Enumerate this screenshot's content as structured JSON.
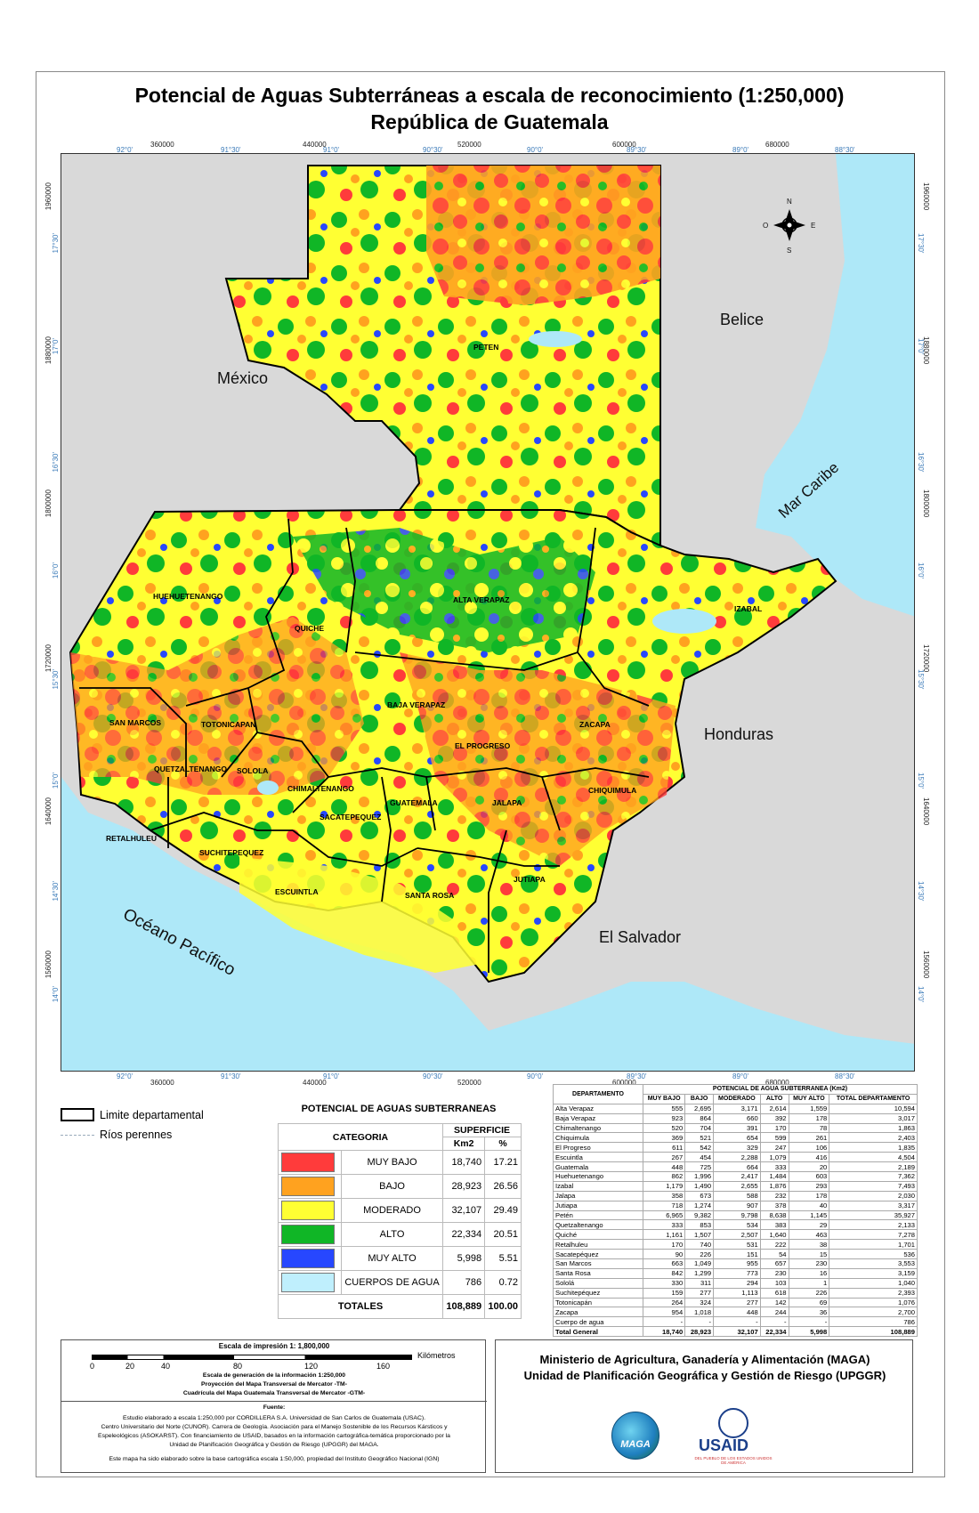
{
  "title": {
    "line1": "Potencial de Aguas Subterráneas a escala de reconocimiento (1:250,000)",
    "line2": "República de Guatemala"
  },
  "map": {
    "countries": {
      "mexico": "México",
      "belice": "Belice",
      "honduras": "Honduras",
      "el_salvador": "El Salvador",
      "mar_caribe": "Mar Caribe",
      "oceano_pacifico": "Océano Pacífico"
    },
    "compass": {
      "n": "N",
      "s": "S",
      "e": "E",
      "o": "O"
    },
    "departments": [
      "PETEN",
      "HUEHUETENANGO",
      "QUICHE",
      "ALTA VERAPAZ",
      "IZABAL",
      "BAJA VERAPAZ",
      "SAN MARCOS",
      "TOTONICAPAN",
      "ZACAPA",
      "EL PROGRESO",
      "QUETZALTENANGO",
      "SOLOLA",
      "CHIMALTENANGO",
      "CHIQUIMULA",
      "GUATEMALA",
      "JALAPA",
      "SACATEPEQUEZ",
      "RETALHULEU",
      "SUCHITEPEQUEZ",
      "JUTIAPA",
      "ESCUINTLA",
      "SANTA ROSA"
    ],
    "top_coords": [
      "360000",
      "440000",
      "520000",
      "600000",
      "680000"
    ],
    "top_geo": [
      "92°0'",
      "91°30'",
      "91°0'",
      "90°30'",
      "90°0'",
      "89°30'",
      "89°0'",
      "88°30'"
    ],
    "side_coords": [
      "1960000",
      "1880000",
      "1800000",
      "1720000",
      "1640000",
      "1560000"
    ],
    "side_geo": [
      "17°30'",
      "17°0'",
      "16°30'",
      "16°0'",
      "15°30'",
      "15°0'",
      "14°30'",
      "14°0'"
    ]
  },
  "legend": {
    "limite": "Limite departamental",
    "rios": "Ríos perennes",
    "table_title": "POTENCIAL DE AGUAS SUBTERRANEAS",
    "col_categoria": "CATEGORIA",
    "col_superficie": "SUPERFICIE",
    "col_km2": "Km2",
    "col_pct": "%",
    "rows": [
      {
        "name": "MUY BAJO",
        "km2": "18,740",
        "pct": "17.21",
        "color": "#ff3b3b"
      },
      {
        "name": "BAJO",
        "km2": "28,923",
        "pct": "26.56",
        "color": "#ffa21f"
      },
      {
        "name": "MODERADO",
        "km2": "32,107",
        "pct": "29.49",
        "color": "#ffff33"
      },
      {
        "name": "ALTO",
        "km2": "22,334",
        "pct": "20.51",
        "color": "#10b626"
      },
      {
        "name": "MUY ALTO",
        "km2": "5,998",
        "pct": "5.51",
        "color": "#2747ff"
      },
      {
        "name": "CUERPOS DE AGUA",
        "km2": "786",
        "pct": "0.72",
        "color": "#bfeffd"
      }
    ],
    "totales_label": "TOTALES",
    "totales_km2": "108,889",
    "totales_pct": "100.00"
  },
  "dept_table": {
    "header_group": "POTENCIAL DE AGUA SUBTERRANEA (Km2)",
    "col_dept": "DEPARTAMENTO",
    "cols": [
      "MUY BAJO",
      "BAJO",
      "MODERADO",
      "ALTO",
      "MUY ALTO",
      "TOTAL DEPARTAMENTO"
    ],
    "rows": [
      [
        "Alta Verapaz",
        "555",
        "2,695",
        "3,171",
        "2,614",
        "1,559",
        "10,594"
      ],
      [
        "Baja Verapaz",
        "923",
        "864",
        "660",
        "392",
        "178",
        "3,017"
      ],
      [
        "Chimaltenango",
        "520",
        "704",
        "391",
        "170",
        "78",
        "1,863"
      ],
      [
        "Chiquimula",
        "369",
        "521",
        "654",
        "599",
        "261",
        "2,403"
      ],
      [
        "El Progreso",
        "611",
        "542",
        "329",
        "247",
        "106",
        "1,835"
      ],
      [
        "Escuintla",
        "267",
        "454",
        "2,288",
        "1,079",
        "416",
        "4,504"
      ],
      [
        "Guatemala",
        "448",
        "725",
        "664",
        "333",
        "20",
        "2,189"
      ],
      [
        "Huehuetenango",
        "862",
        "1,996",
        "2,417",
        "1,484",
        "603",
        "7,362"
      ],
      [
        "Izabal",
        "1,179",
        "1,490",
        "2,655",
        "1,876",
        "293",
        "7,493"
      ],
      [
        "Jalapa",
        "358",
        "673",
        "588",
        "232",
        "178",
        "2,030"
      ],
      [
        "Jutiapa",
        "718",
        "1,274",
        "907",
        "378",
        "40",
        "3,317"
      ],
      [
        "Petén",
        "6,965",
        "9,382",
        "9,798",
        "8,638",
        "1,145",
        "35,927"
      ],
      [
        "Quetzaltenango",
        "333",
        "853",
        "534",
        "383",
        "29",
        "2,133"
      ],
      [
        "Quiché",
        "1,161",
        "1,507",
        "2,507",
        "1,640",
        "463",
        "7,278"
      ],
      [
        "Retalhuleu",
        "170",
        "740",
        "531",
        "222",
        "38",
        "1,701"
      ],
      [
        "Sacatepéquez",
        "90",
        "226",
        "151",
        "54",
        "15",
        "536"
      ],
      [
        "San Marcos",
        "663",
        "1,049",
        "955",
        "657",
        "230",
        "3,553"
      ],
      [
        "Santa Rosa",
        "842",
        "1,299",
        "773",
        "230",
        "16",
        "3,159"
      ],
      [
        "Sololá",
        "330",
        "311",
        "294",
        "103",
        "1",
        "1,040"
      ],
      [
        "Suchitepéquez",
        "159",
        "277",
        "1,113",
        "618",
        "226",
        "2,393"
      ],
      [
        "Totonicapán",
        "264",
        "324",
        "277",
        "142",
        "69",
        "1,076"
      ],
      [
        "Zacapa",
        "954",
        "1,018",
        "448",
        "244",
        "36",
        "2,700"
      ],
      [
        "Cuerpo de agua",
        "-",
        "-",
        "-",
        "-",
        "-",
        "786"
      ]
    ],
    "total_row": [
      "Total General",
      "18,740",
      "28,923",
      "32,107",
      "22,334",
      "5,998",
      "108,889"
    ]
  },
  "scale": {
    "title": "Escala de impresión 1: 1,800,000",
    "ticks": [
      "0",
      "20",
      "40",
      "80",
      "120",
      "160"
    ],
    "unit": "Kilómetros",
    "notes": [
      "Escala de generación de la información 1:250,000",
      "Proyección del Mapa Transversal de Mercator -TM-",
      "Cuadrícula del Mapa Guatemala Transversal de Mercator -GTM-"
    ],
    "fuente_label": "Fuente:",
    "fuente_lines": [
      "Estudio elaborado a escala 1:250,000 por CORDILLERA S.A. Universidad de San Carlos de Guatemala (USAC).",
      "Centro Universitario del Norte (CUNOR). Carrera de Geología. Asociación para el Manejo Sostenible de los Recursos Kársticos y",
      "Espeleológicos (ASOKARST). Con financiamiento de USAID, basados en la información cartográfica-temática proporcionado por la",
      "Unidad de Planificación Geográfica y Gestión de Riesgo (UPGGR) del MAGA.",
      "Este mapa ha sido elaborado sobre la base cartográfica escala 1:50,000, propiedad del Instituto Geográfico Nacional (IGN)"
    ]
  },
  "institution": {
    "line1": "Ministerio de Agricultura, Ganadería y Alimentación (MAGA)",
    "line2": "Unidad de Planificación Geográfica y Gestión de Riesgo (UPGGR)",
    "maga_logo": "MAGA",
    "usaid_logo": "USAID",
    "usaid_sub": "DEL PUEBLO DE LOS ESTADOS UNIDOS DE AMÉRICA"
  }
}
